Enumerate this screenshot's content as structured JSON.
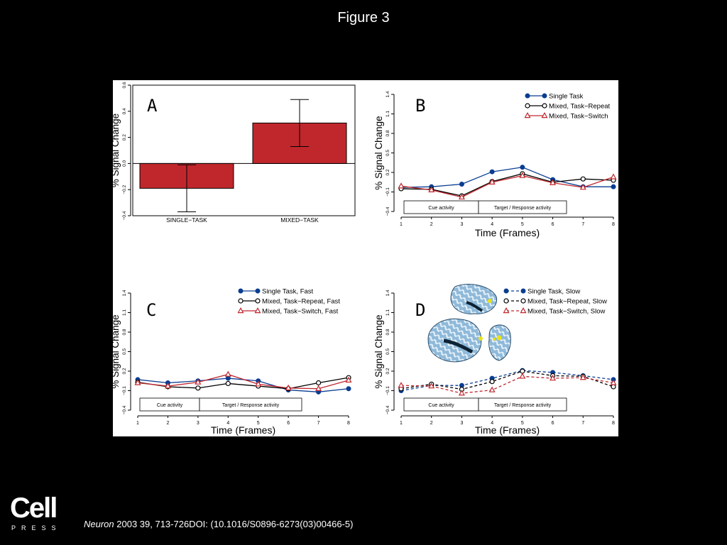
{
  "slide": {
    "title": "Figure 3",
    "citation_journal": "Neuron",
    "citation_rest": " 2003 39, 713-726DOI: (10.1016/S0896-6273(03)00466-5)",
    "logo_main": "Cell",
    "logo_sub": "PRESS"
  },
  "colors": {
    "blue": "#0a3d91",
    "black": "#000000",
    "red": "#c0272d",
    "bar_fill": "#c0272d"
  },
  "chart_data": [
    {
      "panel": "A",
      "type": "bar",
      "categories": [
        "SINGLE−TASK",
        "MIXED−TASK"
      ],
      "values": [
        -0.19,
        0.31
      ],
      "error": [
        [
          -0.37,
          -0.01
        ],
        [
          0.13,
          0.49
        ]
      ],
      "ylabel": "% Signal Change",
      "ylim": [
        -0.4,
        0.6
      ],
      "yticks": [
        "−0.4",
        "−0.2",
        "0.0",
        "0.2",
        "0.4",
        "0.6"
      ],
      "ytick_values": [
        -0.4,
        -0.2,
        0.0,
        0.2,
        0.4,
        0.6
      ]
    },
    {
      "panel": "B",
      "type": "line",
      "x": [
        1,
        2,
        3,
        4,
        5,
        6,
        7,
        8
      ],
      "xlabel": "Time (Frames)",
      "ylabel": "% Signal Change",
      "ylim": [
        -0.4,
        1.4
      ],
      "yticks": [
        "−0.4",
        "−0.1",
        "0.2",
        "0.5",
        "0.8",
        "1.1",
        "1.4"
      ],
      "ytick_values": [
        -0.4,
        -0.1,
        0.2,
        0.5,
        0.8,
        1.1,
        1.4
      ],
      "boxes": [
        "Cue activity",
        "Target / Response activity"
      ],
      "legend": "top-right",
      "series": [
        {
          "name": "Single Task",
          "marker": "filled-circle",
          "dash": "solid",
          "color": "#0a3d91",
          "values": [
            -0.03,
            -0.02,
            0.02,
            0.21,
            0.28,
            0.09,
            -0.02,
            -0.02
          ]
        },
        {
          "name": "Mixed, Task−Repeat",
          "marker": "open-circle",
          "dash": "solid",
          "color": "#000000",
          "values": [
            -0.05,
            -0.06,
            -0.16,
            0.06,
            0.18,
            0.05,
            0.1,
            0.08
          ]
        },
        {
          "name": "Mixed, Task−Switch",
          "marker": "open-triangle",
          "dash": "solid",
          "color": "#c0272d",
          "values": [
            -0.01,
            -0.07,
            -0.18,
            0.05,
            0.15,
            0.04,
            -0.03,
            0.13
          ]
        }
      ]
    },
    {
      "panel": "C",
      "type": "line",
      "x": [
        1,
        2,
        3,
        4,
        5,
        6,
        7,
        8
      ],
      "xlabel": "Time (Frames)",
      "ylabel": "% Signal Change",
      "ylim": [
        -0.4,
        1.4
      ],
      "yticks": [
        "−0.4",
        "−0.1",
        "0.2",
        "0.5",
        "0.8",
        "1.1",
        "1.4"
      ],
      "ytick_values": [
        -0.4,
        -0.1,
        0.2,
        0.5,
        0.8,
        1.1,
        1.4
      ],
      "boxes": [
        "Cue activity",
        "Target / Response activity"
      ],
      "legend": "top-right",
      "series": [
        {
          "name": "Single Task, Fast",
          "marker": "filled-circle",
          "dash": "solid",
          "color": "#0a3d91",
          "values": [
            0.07,
            0.02,
            0.05,
            0.09,
            0.05,
            -0.09,
            -0.12,
            -0.07
          ]
        },
        {
          "name": "Mixed, Task−Repeat, Fast",
          "marker": "open-circle",
          "dash": "solid",
          "color": "#000000",
          "values": [
            0.03,
            -0.04,
            -0.06,
            0.01,
            -0.03,
            -0.07,
            0.02,
            0.1
          ]
        },
        {
          "name": "Mixed, Task−Switch, Fast",
          "marker": "open-triangle",
          "dash": "solid",
          "color": "#c0272d",
          "values": [
            0.02,
            -0.03,
            0.03,
            0.15,
            0.0,
            -0.06,
            -0.07,
            0.06
          ]
        }
      ]
    },
    {
      "panel": "D",
      "type": "line",
      "x": [
        1,
        2,
        3,
        4,
        5,
        6,
        7,
        8
      ],
      "xlabel": "Time (Frames)",
      "ylabel": "% Signal Change",
      "ylim": [
        -0.4,
        1.4
      ],
      "yticks": [
        "−0.4",
        "−0.1",
        "0.2",
        "0.5",
        "0.8",
        "1.1",
        "1.4"
      ],
      "ytick_values": [
        -0.4,
        -0.1,
        0.2,
        0.5,
        0.8,
        1.1,
        1.4
      ],
      "boxes": [
        "Cue activity",
        "Target / Response activity"
      ],
      "legend": "top-right",
      "series": [
        {
          "name": "Single Task, Slow",
          "marker": "filled-circle",
          "dash": "dashed",
          "color": "#0a3d91",
          "values": [
            -0.1,
            -0.02,
            -0.02,
            0.09,
            0.21,
            0.18,
            0.13,
            0.07
          ]
        },
        {
          "name": "Mixed, Task−Repeat, Slow",
          "marker": "open-circle",
          "dash": "dashed",
          "color": "#000000",
          "values": [
            -0.07,
            0.0,
            -0.08,
            0.04,
            0.2,
            0.13,
            0.12,
            -0.04
          ]
        },
        {
          "name": "Mixed, Task−Switch, Slow",
          "marker": "open-triangle",
          "dash": "dashed",
          "color": "#c0272d",
          "values": [
            -0.02,
            -0.03,
            -0.14,
            -0.09,
            0.12,
            0.09,
            0.1,
            0.02
          ]
        }
      ]
    }
  ]
}
